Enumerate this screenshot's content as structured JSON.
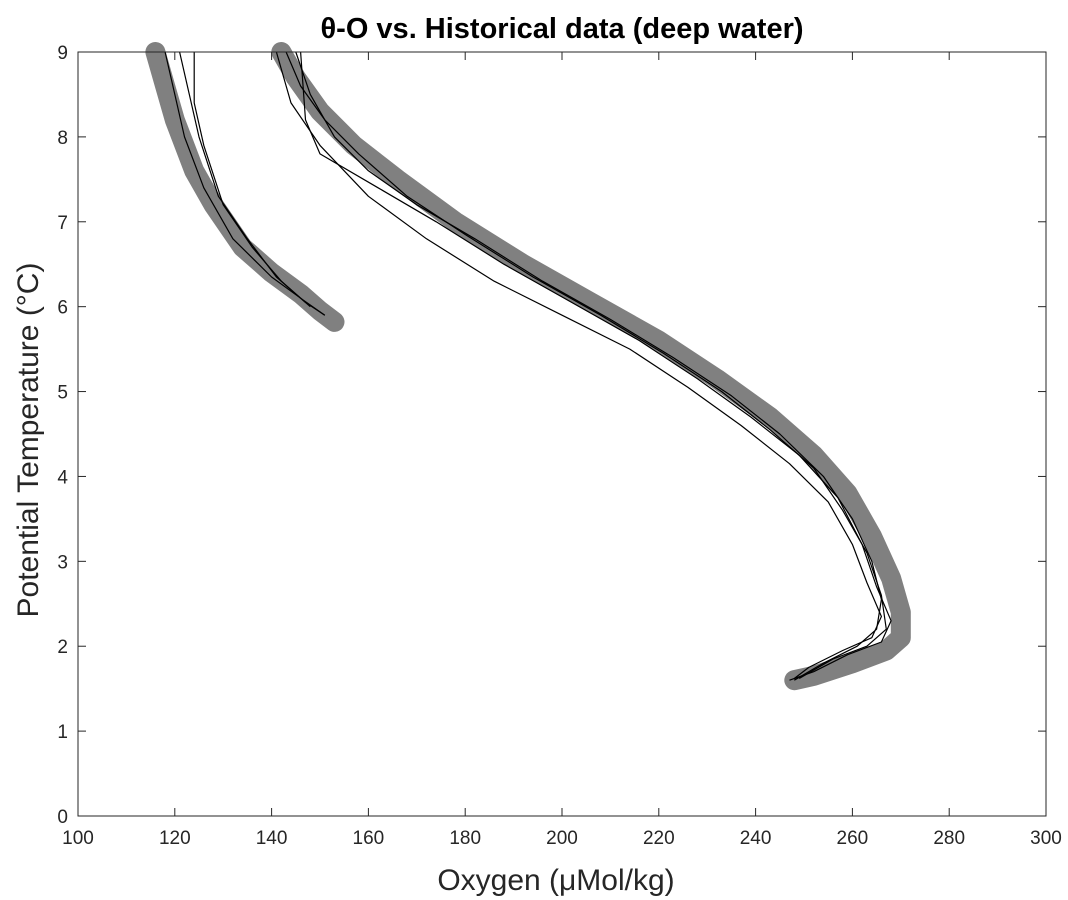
{
  "chart_data": {
    "type": "line",
    "title": "θ-O vs. Historical data (deep water)",
    "xlabel": "Oxygen (μMol/kg)",
    "ylabel": "Potential Temperature (°C)",
    "xlim": [
      100,
      300
    ],
    "ylim": [
      0,
      9
    ],
    "xticks": [
      100,
      120,
      140,
      160,
      180,
      200,
      220,
      240,
      260,
      280,
      300
    ],
    "yticks": [
      0,
      1,
      2,
      3,
      4,
      5,
      6,
      7,
      8,
      9
    ],
    "grid": false,
    "legend": "none",
    "colors": {
      "historical": "#808080",
      "profiles": "#000000",
      "axes": "#262626"
    },
    "series": [
      {
        "role": "historical",
        "style": "scatter-band",
        "points": [
          [
            116,
            9.0
          ],
          [
            118,
            8.6
          ],
          [
            120,
            8.2
          ],
          [
            124,
            7.6
          ],
          [
            128,
            7.2
          ],
          [
            134,
            6.7
          ],
          [
            140,
            6.4
          ],
          [
            146,
            6.15
          ],
          [
            150,
            5.95
          ],
          [
            153,
            5.82
          ]
        ]
      },
      {
        "role": "historical",
        "style": "scatter-band",
        "points": [
          [
            142,
            9.0
          ],
          [
            145,
            8.7
          ],
          [
            150,
            8.3
          ],
          [
            157,
            7.9
          ],
          [
            166,
            7.5
          ],
          [
            178,
            7.0
          ],
          [
            192,
            6.5
          ],
          [
            206,
            6.05
          ],
          [
            220,
            5.6
          ],
          [
            232,
            5.15
          ],
          [
            243,
            4.7
          ],
          [
            252,
            4.25
          ],
          [
            259,
            3.8
          ],
          [
            264,
            3.3
          ],
          [
            268,
            2.8
          ],
          [
            270,
            2.4
          ],
          [
            270,
            2.1
          ],
          [
            267,
            1.95
          ],
          [
            260,
            1.8
          ],
          [
            252,
            1.65
          ],
          [
            248,
            1.6
          ]
        ]
      },
      {
        "role": "profile",
        "style": "line",
        "profiles": [
          [
            [
              118,
              9.0
            ],
            [
              120,
              8.5
            ],
            [
              122,
              8.0
            ],
            [
              126,
              7.4
            ],
            [
              132,
              6.8
            ],
            [
              140,
              6.35
            ],
            [
              146,
              6.1
            ],
            [
              151,
              5.9
            ]
          ],
          [
            [
              121,
              9.0
            ],
            [
              123,
              8.5
            ],
            [
              125,
              8.0
            ],
            [
              129,
              7.3
            ],
            [
              135,
              6.8
            ],
            [
              141,
              6.35
            ],
            [
              147,
              6.05
            ],
            [
              151,
              5.9
            ]
          ],
          [
            [
              124,
              9.0
            ],
            [
              124,
              8.4
            ],
            [
              126,
              7.9
            ],
            [
              130,
              7.2
            ],
            [
              136,
              6.7
            ],
            [
              142,
              6.3
            ],
            [
              148,
              6.0
            ]
          ],
          [
            [
              143,
              9.0
            ],
            [
              146,
              8.6
            ],
            [
              151,
              8.2
            ],
            [
              158,
              7.8
            ],
            [
              168,
              7.3
            ],
            [
              180,
              6.85
            ],
            [
              194,
              6.35
            ],
            [
              208,
              5.9
            ],
            [
              221,
              5.45
            ],
            [
              233,
              5.0
            ],
            [
              243,
              4.55
            ],
            [
              252,
              4.1
            ],
            [
              258,
              3.6
            ],
            [
              263,
              3.1
            ],
            [
              266,
              2.6
            ],
            [
              267,
              2.2
            ],
            [
              263,
              2.0
            ],
            [
              256,
              1.85
            ],
            [
              249,
              1.62
            ]
          ],
          [
            [
              145,
              9.0
            ],
            [
              148,
              8.5
            ],
            [
              153,
              8.0
            ],
            [
              160,
              7.6
            ],
            [
              170,
              7.2
            ],
            [
              182,
              6.8
            ],
            [
              196,
              6.3
            ],
            [
              210,
              5.85
            ],
            [
              223,
              5.4
            ],
            [
              235,
              4.95
            ],
            [
              245,
              4.5
            ],
            [
              254,
              4.0
            ],
            [
              260,
              3.5
            ],
            [
              264,
              3.0
            ],
            [
              266,
              2.55
            ],
            [
              265,
              2.2
            ],
            [
              261,
              2.0
            ],
            [
              254,
              1.8
            ],
            [
              248,
              1.6
            ]
          ],
          [
            [
              146,
              9.0
            ],
            [
              147,
              8.2
            ],
            [
              150,
              7.8
            ],
            [
              162,
              7.4
            ],
            [
              174,
              7.0
            ],
            [
              188,
              6.5
            ],
            [
              202,
              6.05
            ],
            [
              216,
              5.6
            ],
            [
              228,
              5.15
            ],
            [
              239,
              4.7
            ],
            [
              249,
              4.25
            ],
            [
              257,
              3.75
            ],
            [
              262,
              3.2
            ],
            [
              265,
              2.7
            ],
            [
              268,
              2.3
            ],
            [
              266,
              2.05
            ],
            [
              259,
              1.9
            ],
            [
              252,
              1.7
            ],
            [
              247,
              1.6
            ]
          ],
          [
            [
              141,
              9.0
            ],
            [
              144,
              8.4
            ],
            [
              150,
              7.9
            ],
            [
              160,
              7.3
            ],
            [
              172,
              6.8
            ],
            [
              186,
              6.3
            ],
            [
              200,
              5.9
            ],
            [
              214,
              5.5
            ],
            [
              226,
              5.05
            ],
            [
              237,
              4.6
            ],
            [
              247,
              4.15
            ],
            [
              255,
              3.7
            ],
            [
              260,
              3.2
            ],
            [
              263,
              2.75
            ],
            [
              266,
              2.35
            ],
            [
              264,
              2.1
            ],
            [
              258,
              1.95
            ],
            [
              251,
              1.75
            ],
            [
              248,
              1.62
            ]
          ]
        ]
      }
    ]
  }
}
